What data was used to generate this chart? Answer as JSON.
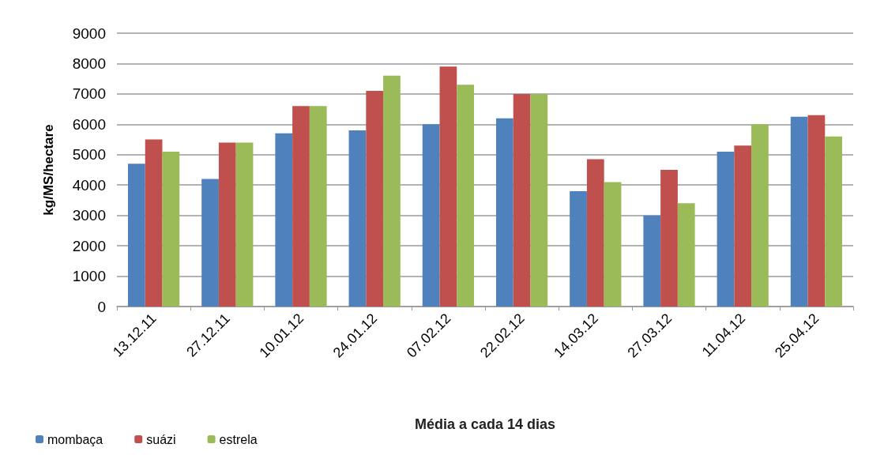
{
  "chart_data": {
    "type": "bar",
    "xlabel": "Média a cada 14 dias",
    "ylabel": "kg/MS/hectare",
    "categories": [
      "13.12.11",
      "27.12.11",
      "10.01.12",
      "24.01.12",
      "07.02.12",
      "22.02.12",
      "14.03.12",
      "27.03.12",
      "11.04.12",
      "25.04.12"
    ],
    "series": [
      {
        "name": "mombaça",
        "color": "#4f81bd",
        "values": [
          4700,
          4200,
          5700,
          5800,
          6000,
          6200,
          3800,
          3000,
          5100,
          6250
        ]
      },
      {
        "name": "suázi",
        "color": "#c0504d",
        "values": [
          5500,
          5400,
          6600,
          7100,
          7900,
          7000,
          4850,
          4500,
          5300,
          6300
        ]
      },
      {
        "name": "estrela",
        "color": "#9bbb59",
        "values": [
          5100,
          5400,
          6600,
          7600,
          7300,
          7000,
          4100,
          3400,
          6000,
          5600
        ]
      }
    ],
    "ylim": [
      0,
      9000
    ],
    "yticks": [
      0,
      1000,
      2000,
      3000,
      4000,
      5000,
      6000,
      7000,
      8000,
      9000
    ],
    "grid": "y",
    "legend": "bottom left"
  }
}
